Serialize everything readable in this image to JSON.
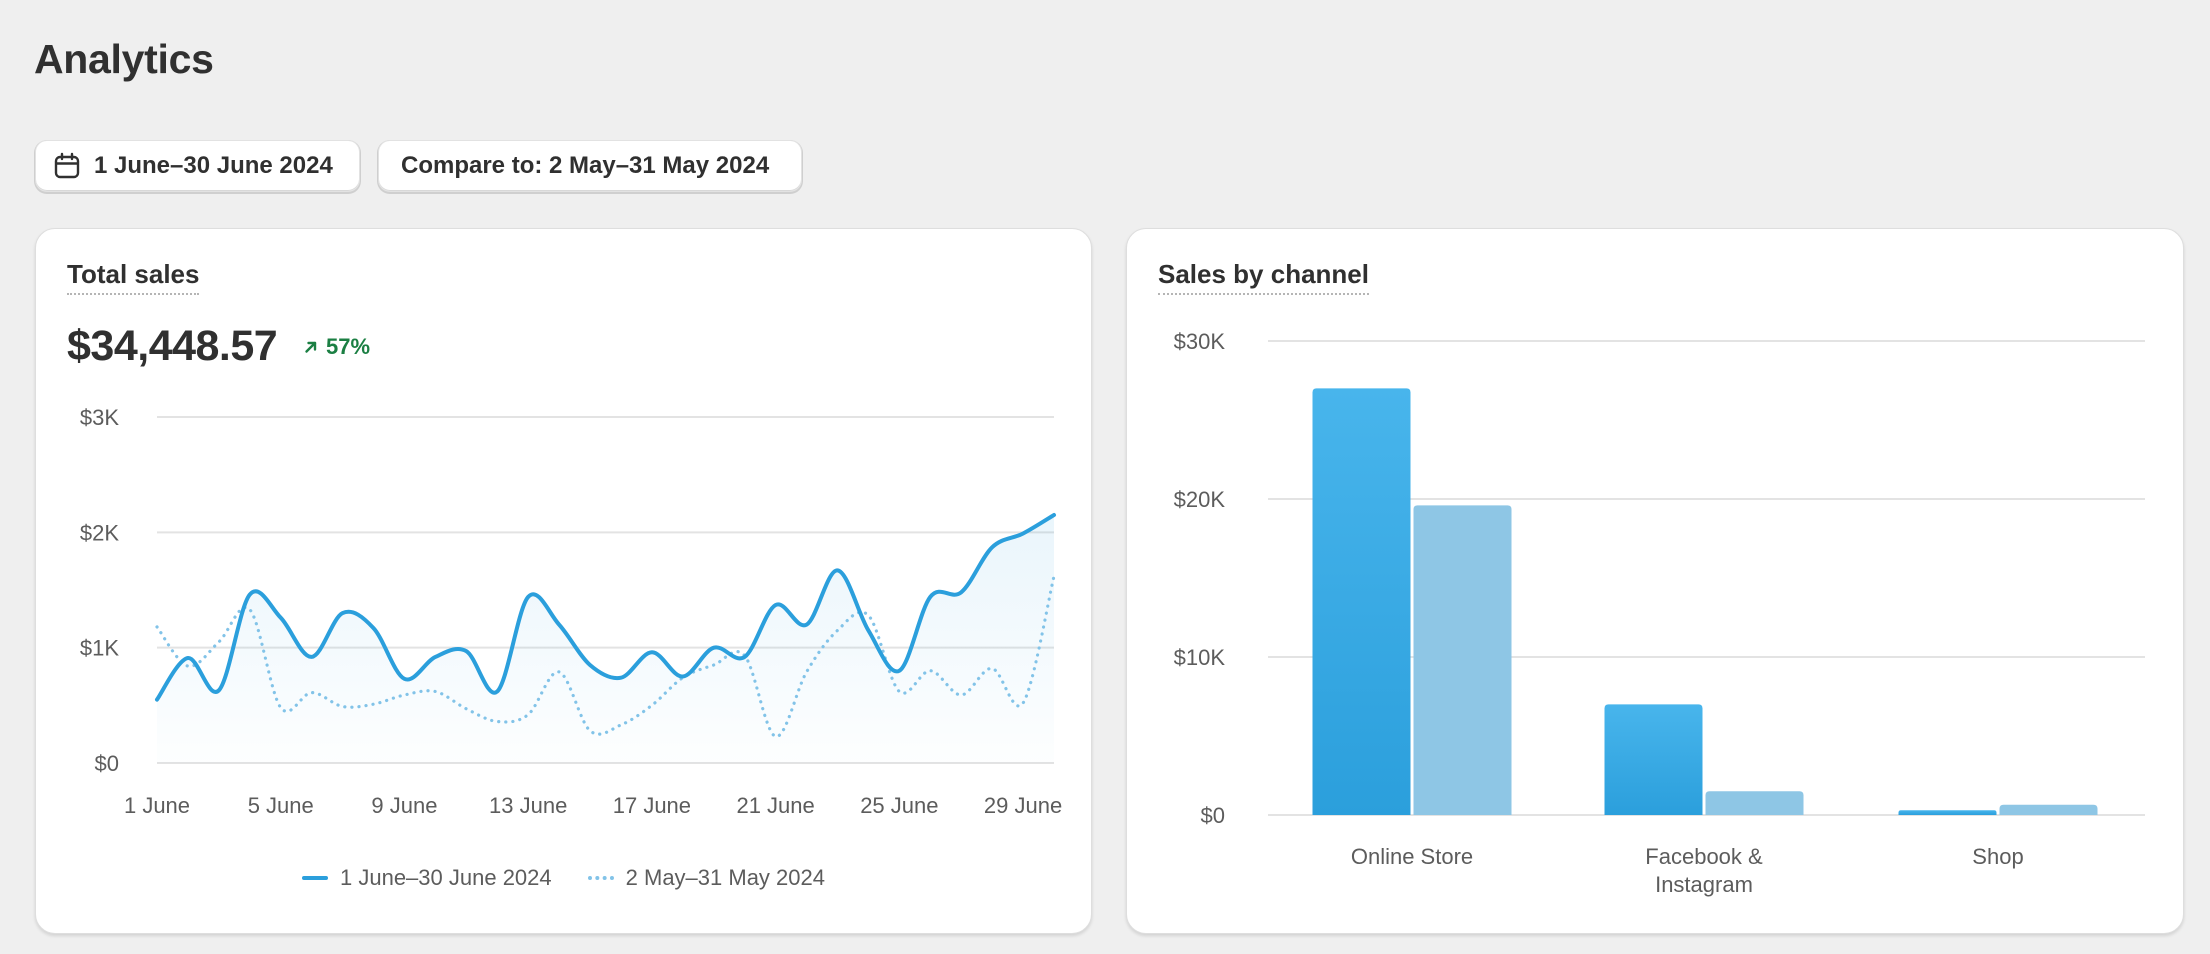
{
  "page": {
    "title": "Analytics"
  },
  "filters": {
    "date_range": "1 June–30 June 2024",
    "compare": "Compare to: 2 May–31 May 2024"
  },
  "total_sales_card": {
    "title": "Total sales",
    "value": "$34,448.57",
    "change": "57%",
    "change_direction": "up",
    "change_color": "#1b7f43"
  },
  "sales_by_channel_card": {
    "title": "Sales by channel"
  },
  "colors": {
    "current": "#2b9fdc",
    "previous": "#82c3e8",
    "bar_current": "#2b9fdc",
    "bar_previous": "#8ec6e5"
  },
  "chart_data": [
    {
      "type": "line",
      "ylim": [
        0,
        3000
      ],
      "yticks": [
        "$0",
        "$1K",
        "$2K",
        "$3K"
      ],
      "ytick_values": [
        0,
        1000,
        2000,
        3000
      ],
      "xtick_labels": [
        "1 June",
        "5 June",
        "9 June",
        "13 June",
        "17 June",
        "21 June",
        "25 June",
        "29 June"
      ],
      "xtick_days": [
        1,
        5,
        9,
        13,
        17,
        21,
        25,
        29
      ],
      "x_days": [
        1,
        2,
        3,
        4,
        5,
        6,
        7,
        8,
        9,
        10,
        11,
        12,
        13,
        14,
        15,
        16,
        17,
        18,
        19,
        20,
        21,
        22,
        23,
        24,
        25,
        26,
        27,
        28,
        29,
        30
      ],
      "legend_position": "bottom",
      "grid": true,
      "series": [
        {
          "name": "1 June–30 June 2024",
          "style": "solid",
          "values": [
            550,
            910,
            630,
            1460,
            1260,
            920,
            1300,
            1170,
            730,
            920,
            970,
            620,
            1440,
            1200,
            850,
            740,
            960,
            750,
            1000,
            920,
            1370,
            1200,
            1670,
            1150,
            800,
            1440,
            1480,
            1870,
            1990,
            2150
          ]
        },
        {
          "name": "2 May–31 May 2024",
          "style": "dotted",
          "values": [
            1180,
            840,
            1050,
            1330,
            480,
            610,
            490,
            510,
            590,
            620,
            470,
            360,
            420,
            790,
            280,
            330,
            500,
            740,
            850,
            930,
            230,
            790,
            1150,
            1280,
            620,
            800,
            590,
            820,
            520,
            1620
          ]
        }
      ]
    },
    {
      "type": "bar",
      "ylim": [
        0,
        30000
      ],
      "yticks": [
        "$0",
        "$10K",
        "$20K",
        "$30K"
      ],
      "ytick_values": [
        0,
        10000,
        20000,
        30000
      ],
      "categories": [
        "Online Store",
        "Facebook & Instagram",
        "Shop"
      ],
      "category_lines": [
        [
          "Online Store"
        ],
        [
          "Facebook &",
          "Instagram"
        ],
        [
          "Shop"
        ]
      ],
      "grid": true,
      "series": [
        {
          "values": [
            27000,
            7000,
            300
          ]
        },
        {
          "values": [
            19600,
            1500,
            650
          ]
        }
      ]
    }
  ]
}
